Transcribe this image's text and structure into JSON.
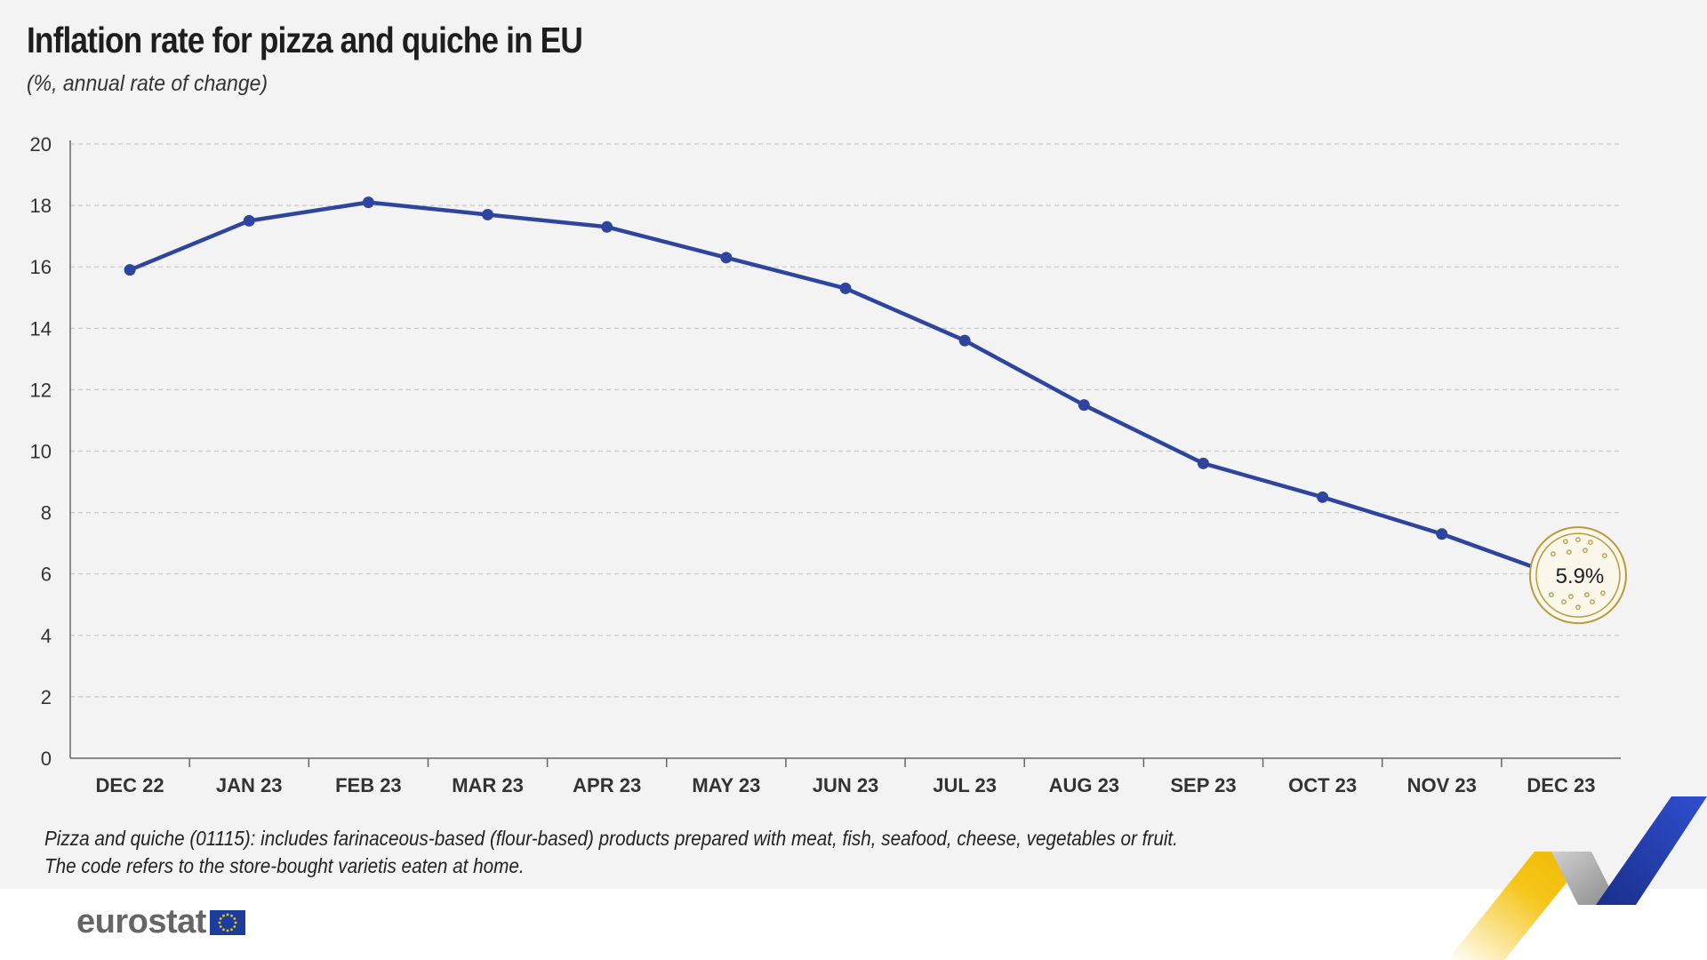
{
  "header": {
    "title": "Inflation rate for pizza and quiche in EU",
    "subtitle": "(%, annual rate of change)"
  },
  "footnote": {
    "line1": "Pizza and quiche (01115): includes farinaceous-based (flour-based) products prepared with meat, fish, seafood, cheese, vegetables or fruit.",
    "line2": "The code refers to the store-bought varietis eaten at home."
  },
  "brand": {
    "name": "eurostat"
  },
  "colors": {
    "line": "#2e45a0",
    "accent_gold": "#b89a3c",
    "grid": "#c8c8c8"
  },
  "chart_data": {
    "type": "line",
    "categories": [
      "DEC 22",
      "JAN 23",
      "FEB 23",
      "MAR 23",
      "APR 23",
      "MAY 23",
      "JUN 23",
      "JUL 23",
      "AUG 23",
      "SEP 23",
      "OCT 23",
      "NOV 23",
      "DEC 23"
    ],
    "series": [
      {
        "values": [
          15.9,
          17.5,
          18.1,
          17.7,
          17.3,
          16.3,
          15.3,
          13.6,
          11.5,
          9.6,
          8.5,
          7.3,
          5.9
        ]
      }
    ],
    "ylim": [
      0,
      20
    ],
    "yticks": [
      0,
      2,
      4,
      6,
      8,
      10,
      12,
      14,
      16,
      18,
      20
    ],
    "grid": true,
    "annotation": {
      "label": "5.9%"
    }
  }
}
